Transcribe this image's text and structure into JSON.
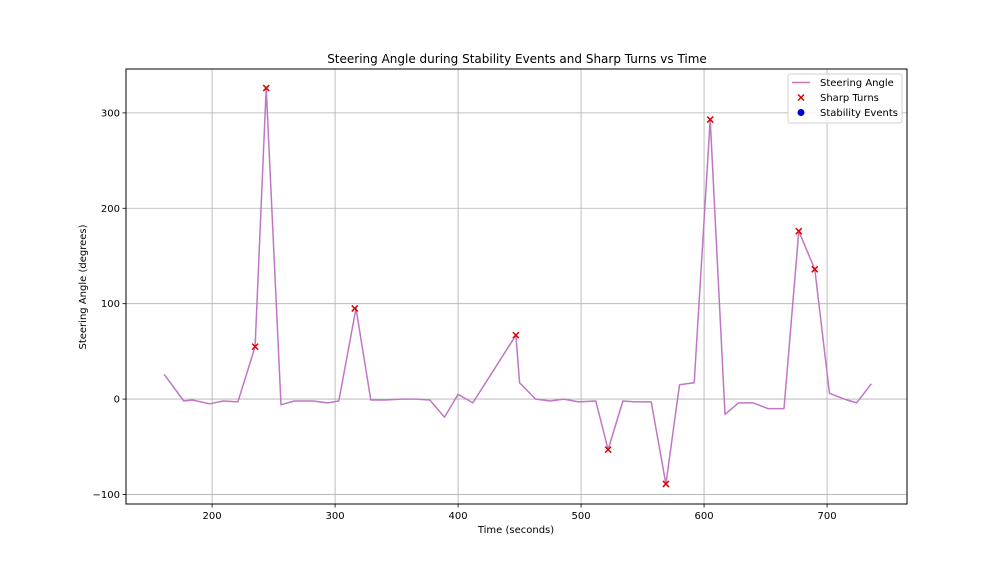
{
  "chart_data": {
    "type": "line",
    "title": "Steering Angle during Stability Events and Sharp Turns vs Time",
    "xlabel": "Time (seconds)",
    "ylabel": "Steering Angle (degrees)",
    "xlim": [
      130,
      765
    ],
    "ylim": [
      -110,
      346
    ],
    "xticks": [
      200,
      300,
      400,
      500,
      600,
      700
    ],
    "yticks": [
      -100,
      0,
      100,
      200,
      300
    ],
    "ytick_labels": [
      "−100",
      "0",
      "100",
      "200",
      "300"
    ],
    "grid": true,
    "legend_position": "top-right",
    "colors": {
      "steering": "#bf77c4",
      "sharp": "#e00000",
      "stability": "#0000cc"
    },
    "series": [
      {
        "name": "Steering Angle",
        "kind": "line",
        "x": [
          161,
          177,
          184,
          198,
          209,
          221,
          235,
          244,
          256,
          267,
          282,
          294,
          303,
          317,
          329,
          341,
          354,
          366,
          377,
          389,
          400,
          412,
          447,
          450,
          463,
          475,
          486,
          498,
          512,
          522,
          534,
          544,
          557,
          569,
          580,
          592,
          605,
          617,
          628,
          640,
          652,
          665,
          677,
          690,
          702,
          714,
          724,
          736
        ],
        "y": [
          26,
          -2,
          -1,
          -5,
          -2,
          -3,
          55,
          326,
          -6,
          -2,
          -2,
          -4,
          -2,
          95,
          -1,
          -1,
          0,
          0,
          -1,
          -19,
          5,
          -4,
          67,
          17,
          0,
          -2,
          0,
          -3,
          -2,
          -53,
          -2,
          -3,
          -3,
          -89,
          15,
          17,
          293,
          -16,
          -4,
          -4,
          -10,
          -10,
          176,
          136,
          6,
          0,
          -4,
          16
        ]
      },
      {
        "name": "Sharp Turns",
        "kind": "scatter",
        "marker": "x",
        "x": [
          235,
          244,
          316,
          447,
          522,
          569,
          605,
          677,
          690
        ],
        "y": [
          55,
          326,
          95,
          67,
          -53,
          -89,
          293,
          176,
          136
        ]
      },
      {
        "name": "Stability Events",
        "kind": "scatter",
        "marker": "circle",
        "x": [],
        "y": []
      }
    ]
  }
}
